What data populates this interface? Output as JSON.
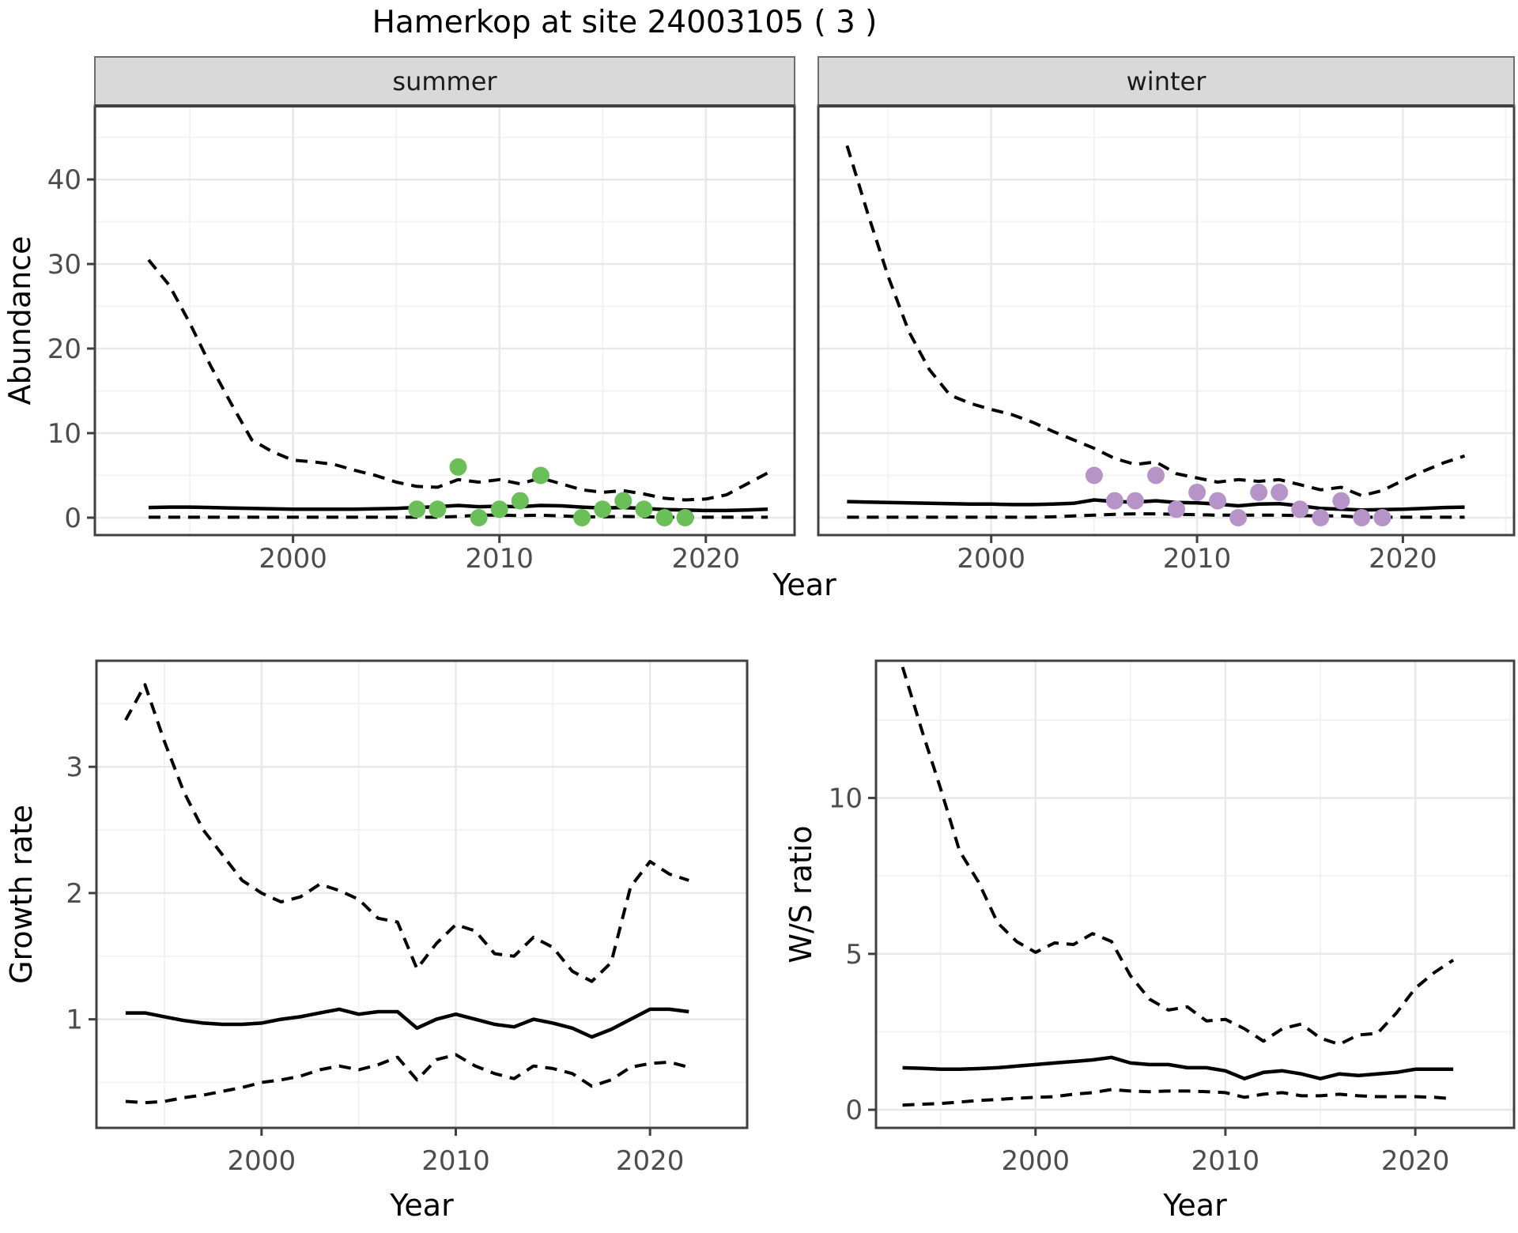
{
  "title": "Hamerkop at site 24003105 ( 3 )",
  "shared_xlabel": "Year",
  "colors": {
    "summer_point": "#6abf59",
    "winter_point": "#b794c8",
    "line": "#000000",
    "strip_bg": "#d9d9d9",
    "strip_border": "#6e6e6e",
    "panel_border": "#404040",
    "grid_major": "#e8e8e8",
    "grid_minor": "#f3f3f3",
    "tick_label": "#4d4d4d",
    "axis_title": "#000000"
  },
  "chart_data": [
    {
      "id": "abundance-summer",
      "type": "line",
      "facet_label": "summer",
      "ylabel": "Abundance",
      "xlabel": null,
      "xlim": [
        1990.4,
        2024.3
      ],
      "ylim": [
        -2.06,
        48.7
      ],
      "xticks": [
        {
          "v": 2000,
          "label": "2000"
        },
        {
          "v": 2010,
          "label": "2010"
        },
        {
          "v": 2020,
          "label": "2020"
        }
      ],
      "xminor": [
        1995,
        2005,
        2015
      ],
      "yticks": [
        {
          "v": 0,
          "label": "0"
        },
        {
          "v": 10,
          "label": "10"
        },
        {
          "v": 20,
          "label": "20"
        },
        {
          "v": 30,
          "label": "30"
        },
        {
          "v": 40,
          "label": "40"
        }
      ],
      "yminor": [
        5,
        15,
        25,
        35,
        45
      ],
      "x": [
        1993,
        1994,
        1995,
        1996,
        1997,
        1998,
        1999,
        2000,
        2001,
        2002,
        2003,
        2004,
        2005,
        2006,
        2007,
        2008,
        2009,
        2010,
        2011,
        2012,
        2013,
        2014,
        2015,
        2016,
        2017,
        2018,
        2019,
        2020,
        2021,
        2022,
        2023
      ],
      "series": [
        {
          "name": "upper_ci",
          "style": "dashed",
          "values": [
            30.5,
            27.5,
            23,
            18,
            13.5,
            9.2,
            7.8,
            6.8,
            6.6,
            6.3,
            5.6,
            5.0,
            4.2,
            3.7,
            3.6,
            4.5,
            4.2,
            4.5,
            4.0,
            4.7,
            4.0,
            3.3,
            3.0,
            3.2,
            2.8,
            2.3,
            2.1,
            2.2,
            2.7,
            4.0,
            5.3
          ]
        },
        {
          "name": "mean",
          "style": "solid",
          "values": [
            1.2,
            1.25,
            1.25,
            1.2,
            1.15,
            1.1,
            1.05,
            1.0,
            1.0,
            1.0,
            1.0,
            1.05,
            1.1,
            1.2,
            1.3,
            1.45,
            1.3,
            1.35,
            1.3,
            1.45,
            1.4,
            1.25,
            1.15,
            1.2,
            1.1,
            0.95,
            0.9,
            0.85,
            0.85,
            0.9,
            1.0
          ]
        },
        {
          "name": "lower_ci",
          "style": "dashed",
          "values": [
            0.05,
            0.05,
            0.05,
            0.05,
            0.05,
            0.05,
            0.05,
            0.05,
            0.05,
            0.05,
            0.05,
            0.05,
            0.05,
            0.05,
            0.05,
            0.15,
            0.3,
            0.3,
            0.25,
            0.3,
            0.2,
            0.1,
            0.1,
            0.15,
            0.1,
            0.05,
            0.05,
            0.05,
            0.05,
            0.05,
            0.05
          ]
        }
      ],
      "points": {
        "name": "summer_observations",
        "color_key": "summer_point",
        "data": [
          [
            2006,
            1
          ],
          [
            2007,
            1
          ],
          [
            2008,
            6
          ],
          [
            2009,
            0
          ],
          [
            2010,
            1
          ],
          [
            2011,
            2
          ],
          [
            2012,
            5
          ],
          [
            2014,
            0
          ],
          [
            2015,
            1
          ],
          [
            2016,
            2
          ],
          [
            2017,
            1
          ],
          [
            2018,
            0
          ],
          [
            2019,
            0
          ]
        ]
      }
    },
    {
      "id": "abundance-winter",
      "type": "line",
      "facet_label": "winter",
      "ylabel": null,
      "xlabel": null,
      "xlim": [
        1991.6,
        2025.4
      ],
      "ylim": [
        -2.06,
        48.7
      ],
      "xticks": [
        {
          "v": 2000,
          "label": "2000"
        },
        {
          "v": 2010,
          "label": "2010"
        },
        {
          "v": 2020,
          "label": "2020"
        }
      ],
      "xminor": [
        1995,
        2005,
        2015,
        2025
      ],
      "yticks": [
        {
          "v": 0,
          "label": "0"
        },
        {
          "v": 10,
          "label": "10"
        },
        {
          "v": 20,
          "label": "20"
        },
        {
          "v": 30,
          "label": "30"
        },
        {
          "v": 40,
          "label": "40"
        }
      ],
      "yminor": [
        5,
        15,
        25,
        35,
        45
      ],
      "x": [
        1993,
        1994,
        1995,
        1996,
        1997,
        1998,
        1999,
        2000,
        2001,
        2002,
        2003,
        2004,
        2005,
        2006,
        2007,
        2008,
        2009,
        2010,
        2011,
        2012,
        2013,
        2014,
        2015,
        2016,
        2017,
        2018,
        2019,
        2020,
        2021,
        2022,
        2023
      ],
      "series": [
        {
          "name": "upper_ci",
          "style": "dashed",
          "values": [
            44,
            36,
            28.5,
            22,
            17.5,
            14.5,
            13.5,
            12.8,
            12.2,
            11.3,
            10.2,
            9.2,
            8.2,
            7.0,
            6.3,
            6.6,
            5.2,
            4.7,
            4.2,
            4.5,
            4.3,
            4.5,
            3.9,
            3.3,
            3.6,
            2.6,
            3.2,
            4.4,
            5.5,
            6.5,
            7.3
          ]
        },
        {
          "name": "mean",
          "style": "solid",
          "values": [
            1.9,
            1.85,
            1.8,
            1.75,
            1.7,
            1.65,
            1.6,
            1.6,
            1.55,
            1.55,
            1.6,
            1.7,
            2.1,
            1.9,
            1.85,
            2.0,
            1.8,
            1.75,
            1.6,
            1.4,
            1.6,
            1.65,
            1.4,
            1.1,
            1.0,
            0.9,
            0.95,
            1.0,
            1.1,
            1.2,
            1.25
          ]
        },
        {
          "name": "lower_ci",
          "style": "dashed",
          "values": [
            0.05,
            0.05,
            0.05,
            0.05,
            0.05,
            0.05,
            0.05,
            0.05,
            0.05,
            0.05,
            0.1,
            0.2,
            0.3,
            0.4,
            0.45,
            0.45,
            0.4,
            0.35,
            0.3,
            0.3,
            0.3,
            0.3,
            0.25,
            0.2,
            0.2,
            0.05,
            0.05,
            0.05,
            0.05,
            0.05,
            0.05
          ]
        }
      ],
      "points": {
        "name": "winter_observations",
        "color_key": "winter_point",
        "data": [
          [
            2005,
            5
          ],
          [
            2006,
            2
          ],
          [
            2007,
            2
          ],
          [
            2008,
            5
          ],
          [
            2009,
            1
          ],
          [
            2010,
            3
          ],
          [
            2011,
            2
          ],
          [
            2012,
            0
          ],
          [
            2013,
            3
          ],
          [
            2014,
            3
          ],
          [
            2015,
            1
          ],
          [
            2016,
            0
          ],
          [
            2017,
            2
          ],
          [
            2018,
            0
          ],
          [
            2019,
            0
          ]
        ]
      }
    },
    {
      "id": "growth-rate",
      "type": "line",
      "facet_label": null,
      "ylabel": "Growth rate",
      "xlabel": "Year",
      "xlim": [
        1991.5,
        2025.0
      ],
      "ylim": [
        0.14,
        3.84
      ],
      "xticks": [
        {
          "v": 2000,
          "label": "2000"
        },
        {
          "v": 2010,
          "label": "2010"
        },
        {
          "v": 2020,
          "label": "2020"
        }
      ],
      "xminor": [
        1995,
        2005,
        2015,
        2025
      ],
      "yticks": [
        {
          "v": 1,
          "label": "1"
        },
        {
          "v": 2,
          "label": "2"
        },
        {
          "v": 3,
          "label": "3"
        }
      ],
      "yminor": [
        0.5,
        1.5,
        2.5,
        3.5
      ],
      "x": [
        1993,
        1994,
        1995,
        1996,
        1997,
        1998,
        1999,
        2000,
        2001,
        2002,
        2003,
        2004,
        2005,
        2006,
        2007,
        2008,
        2009,
        2010,
        2011,
        2012,
        2013,
        2014,
        2015,
        2016,
        2017,
        2018,
        2019,
        2020,
        2021,
        2022
      ],
      "series": [
        {
          "name": "upper_ci",
          "style": "dashed",
          "values": [
            3.37,
            3.65,
            3.2,
            2.8,
            2.5,
            2.3,
            2.1,
            2.0,
            1.93,
            1.97,
            2.07,
            2.02,
            1.95,
            1.8,
            1.77,
            1.4,
            1.6,
            1.75,
            1.7,
            1.52,
            1.5,
            1.65,
            1.57,
            1.38,
            1.3,
            1.45,
            2.05,
            2.25,
            2.15,
            2.1
          ]
        },
        {
          "name": "mean",
          "style": "solid",
          "values": [
            1.05,
            1.05,
            1.02,
            0.99,
            0.97,
            0.96,
            0.96,
            0.97,
            1.0,
            1.02,
            1.05,
            1.08,
            1.04,
            1.06,
            1.06,
            0.93,
            1.0,
            1.04,
            1.0,
            0.96,
            0.94,
            1.0,
            0.97,
            0.93,
            0.86,
            0.92,
            1.0,
            1.08,
            1.08,
            1.06
          ]
        },
        {
          "name": "lower_ci",
          "style": "dashed",
          "values": [
            0.35,
            0.34,
            0.35,
            0.38,
            0.4,
            0.43,
            0.46,
            0.5,
            0.52,
            0.55,
            0.6,
            0.63,
            0.6,
            0.64,
            0.7,
            0.52,
            0.68,
            0.72,
            0.63,
            0.57,
            0.53,
            0.63,
            0.61,
            0.57,
            0.47,
            0.52,
            0.62,
            0.65,
            0.66,
            0.62
          ]
        }
      ],
      "points": null
    },
    {
      "id": "ws-ratio",
      "type": "line",
      "facet_label": null,
      "ylabel": "W/S ratio",
      "xlabel": "Year",
      "xlim": [
        1991.6,
        2025.2
      ],
      "ylim": [
        -0.58,
        14.4
      ],
      "xticks": [
        {
          "v": 2000,
          "label": "2000"
        },
        {
          "v": 2010,
          "label": "2010"
        },
        {
          "v": 2020,
          "label": "2020"
        }
      ],
      "xminor": [
        1995,
        2005,
        2015,
        2025
      ],
      "yticks": [
        {
          "v": 0,
          "label": "0"
        },
        {
          "v": 5,
          "label": "5"
        },
        {
          "v": 10,
          "label": "10"
        }
      ],
      "yminor": [
        2.5,
        7.5,
        12.5
      ],
      "x": [
        1993,
        1994,
        1995,
        1996,
        1997,
        1998,
        1999,
        2000,
        2001,
        2002,
        2003,
        2004,
        2005,
        2006,
        2007,
        2008,
        2009,
        2010,
        2011,
        2012,
        2013,
        2014,
        2015,
        2016,
        2017,
        2018,
        2019,
        2020,
        2021,
        2022
      ],
      "series": [
        {
          "name": "upper_ci",
          "style": "dashed",
          "values": [
            14.2,
            12.2,
            10.3,
            8.3,
            7.3,
            6.0,
            5.4,
            5.05,
            5.35,
            5.3,
            5.65,
            5.4,
            4.3,
            3.55,
            3.2,
            3.3,
            2.85,
            2.9,
            2.6,
            2.2,
            2.6,
            2.75,
            2.3,
            2.1,
            2.4,
            2.45,
            3.1,
            3.9,
            4.4,
            4.8
          ]
        },
        {
          "name": "mean",
          "style": "solid",
          "values": [
            1.35,
            1.33,
            1.3,
            1.3,
            1.32,
            1.35,
            1.4,
            1.45,
            1.5,
            1.55,
            1.6,
            1.68,
            1.5,
            1.45,
            1.45,
            1.35,
            1.35,
            1.25,
            1.0,
            1.2,
            1.25,
            1.15,
            1.0,
            1.15,
            1.1,
            1.15,
            1.2,
            1.3,
            1.3,
            1.3
          ]
        },
        {
          "name": "lower_ci",
          "style": "dashed",
          "values": [
            0.15,
            0.18,
            0.2,
            0.25,
            0.3,
            0.33,
            0.37,
            0.4,
            0.42,
            0.5,
            0.55,
            0.65,
            0.6,
            0.58,
            0.6,
            0.6,
            0.58,
            0.55,
            0.4,
            0.5,
            0.55,
            0.45,
            0.45,
            0.5,
            0.45,
            0.42,
            0.42,
            0.42,
            0.4,
            0.35
          ]
        }
      ],
      "points": null
    }
  ]
}
